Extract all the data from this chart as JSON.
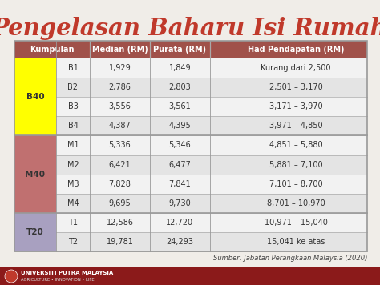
{
  "title": "Pengelasan Baharu Isi Rumah",
  "title_color": "#c0392b",
  "background_color": "#f0ede8",
  "header": [
    "Kumpulan",
    "Median (RM)",
    "Purata (RM)",
    "Had Pendapatan (RM)"
  ],
  "header_bg": "#A0514A",
  "header_fg": "#ffffff",
  "rows": [
    {
      "group": "B40",
      "sub": "B1",
      "median": "1,929",
      "purata": "1,849",
      "had": "Kurang dari 2,500"
    },
    {
      "group": "",
      "sub": "B2",
      "median": "2,786",
      "purata": "2,803",
      "had": "2,501 – 3,170"
    },
    {
      "group": "",
      "sub": "B3",
      "median": "3,556",
      "purata": "3,561",
      "had": "3,171 – 3,970"
    },
    {
      "group": "",
      "sub": "B4",
      "median": "4,387",
      "purata": "4,395",
      "had": "3,971 – 4,850"
    },
    {
      "group": "M40",
      "sub": "M1",
      "median": "5,336",
      "purata": "5,346",
      "had": "4,851 – 5,880"
    },
    {
      "group": "",
      "sub": "M2",
      "median": "6,421",
      "purata": "6,477",
      "had": "5,881 – 7,100"
    },
    {
      "group": "",
      "sub": "M3",
      "median": "7,828",
      "purata": "7,841",
      "had": "7,101 – 8,700"
    },
    {
      "group": "",
      "sub": "M4",
      "median": "9,695",
      "purata": "9,730",
      "had": "8,701 – 10,970"
    },
    {
      "group": "T20",
      "sub": "T1",
      "median": "12,586",
      "purata": "12,720",
      "had": "10,971 – 15,040"
    },
    {
      "group": "",
      "sub": "T2",
      "median": "19,781",
      "purata": "24,293",
      "had": "15,041 ke atas"
    }
  ],
  "group_colors": {
    "B40": "#FFFF00",
    "M40": "#C07070",
    "T20": "#A8A0C0"
  },
  "group_spans": {
    "B40": [
      0,
      3
    ],
    "M40": [
      4,
      7
    ],
    "T20": [
      8,
      9
    ]
  },
  "row_bg_light": "#f2f2f2",
  "row_bg_dark": "#e4e4e4",
  "border_color": "#999999",
  "source_text": "Sumber: Jabatan Perangkaan Malaysia (2020)",
  "footer_logo_text": "UNIVERSITI PUTRA MALAYSIA",
  "footer_sub_text": "AGRICULTURE • INNOVATION • LIFE",
  "footer_bg": "#8B1A1A"
}
